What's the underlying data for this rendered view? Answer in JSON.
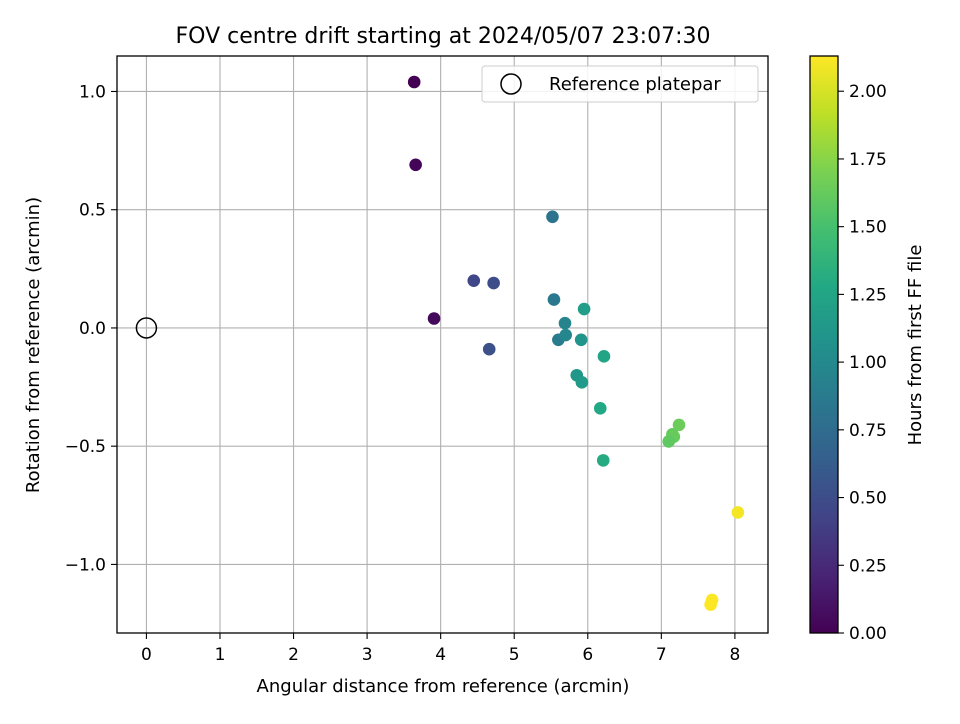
{
  "chart_data": {
    "type": "scatter",
    "title": "FOV centre drift starting at 2024/05/07 23:07:30",
    "xlabel": "Angular distance from reference (arcmin)",
    "ylabel": "Rotation from reference (arcmin)",
    "xlim": [
      -0.4,
      8.45
    ],
    "ylim": [
      -1.29,
      1.15
    ],
    "xticks": [
      0,
      1,
      2,
      3,
      4,
      5,
      6,
      7,
      8
    ],
    "xtick_labels": [
      "0",
      "1",
      "2",
      "3",
      "4",
      "5",
      "6",
      "7",
      "8"
    ],
    "yticks": [
      1.0,
      0.5,
      0.0,
      -0.5,
      -1.0
    ],
    "ytick_labels": [
      "1.0",
      "0.5",
      "0.0",
      "−0.5",
      "−1.0"
    ],
    "grid": true,
    "legend": {
      "position": "top-right",
      "entries": [
        "Reference platepar"
      ]
    },
    "reference_point": {
      "x": 0,
      "y": 0,
      "label": "Reference platepar"
    },
    "colorbar": {
      "label": "Hours from first FF file",
      "range": [
        0,
        2.13
      ],
      "colormap": "viridis",
      "ticks": [
        0.0,
        0.25,
        0.5,
        0.75,
        1.0,
        1.25,
        1.5,
        1.75,
        2.0
      ],
      "tick_labels": [
        "0.00",
        "0.25",
        "0.50",
        "0.75",
        "1.00",
        "1.25",
        "1.50",
        "1.75",
        "2.00"
      ]
    },
    "points": [
      {
        "x": 3.64,
        "y": 1.04,
        "hours": 0.0
      },
      {
        "x": 3.66,
        "y": 0.69,
        "hours": 0.02
      },
      {
        "x": 3.91,
        "y": 0.04,
        "hours": 0.05
      },
      {
        "x": 4.45,
        "y": 0.2,
        "hours": 0.45
      },
      {
        "x": 4.72,
        "y": 0.19,
        "hours": 0.5
      },
      {
        "x": 4.66,
        "y": -0.09,
        "hours": 0.52
      },
      {
        "x": 5.52,
        "y": 0.47,
        "hours": 0.82
      },
      {
        "x": 5.54,
        "y": 0.12,
        "hours": 0.85
      },
      {
        "x": 5.6,
        "y": -0.05,
        "hours": 0.88
      },
      {
        "x": 5.69,
        "y": 0.02,
        "hours": 0.95
      },
      {
        "x": 5.7,
        "y": -0.03,
        "hours": 0.98
      },
      {
        "x": 5.91,
        "y": -0.05,
        "hours": 1.1
      },
      {
        "x": 5.95,
        "y": 0.08,
        "hours": 1.18
      },
      {
        "x": 5.85,
        "y": -0.2,
        "hours": 1.12
      },
      {
        "x": 5.92,
        "y": -0.23,
        "hours": 1.15
      },
      {
        "x": 6.22,
        "y": -0.12,
        "hours": 1.25
      },
      {
        "x": 6.17,
        "y": -0.34,
        "hours": 1.28
      },
      {
        "x": 6.21,
        "y": -0.56,
        "hours": 1.3
      },
      {
        "x": 7.24,
        "y": -0.41,
        "hours": 1.65
      },
      {
        "x": 7.15,
        "y": -0.45,
        "hours": 1.62
      },
      {
        "x": 7.17,
        "y": -0.46,
        "hours": 1.63
      },
      {
        "x": 7.1,
        "y": -0.48,
        "hours": 1.6
      },
      {
        "x": 8.04,
        "y": -0.78,
        "hours": 2.1
      },
      {
        "x": 7.69,
        "y": -1.15,
        "hours": 2.12
      },
      {
        "x": 7.67,
        "y": -1.17,
        "hours": 2.13
      }
    ]
  }
}
